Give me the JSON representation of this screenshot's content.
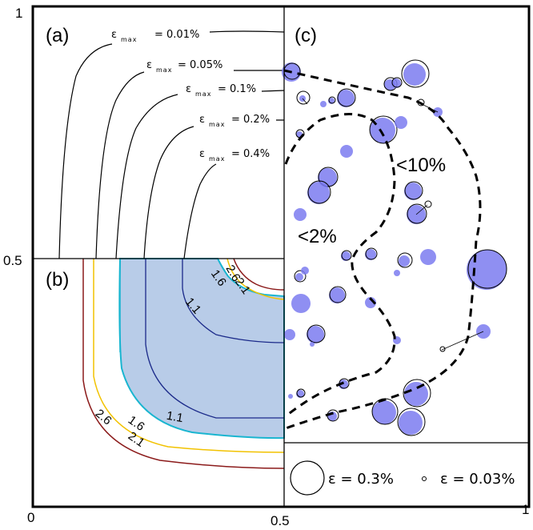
{
  "axes": {
    "y_top": "1",
    "y_mid": "0.5",
    "x_left": "0",
    "x_mid": "0.5",
    "x_right": "1"
  },
  "panel_a": {
    "label": "(a)",
    "contour_prefix": "ε",
    "contour_sub": "max",
    "contours": [
      "= 0.01%",
      "= 0.05%",
      "= 0.1%",
      "= 0.2%",
      "= 0.4%"
    ]
  },
  "panel_b": {
    "label": "(b)",
    "contour_labels": [
      "2.6",
      "2.1",
      "1.6",
      "1.1",
      "1.1",
      "1.6",
      "2.1",
      "2.6"
    ],
    "colors": {
      "fill": "#b8cce8",
      "c11": "#1b2a8a",
      "c16": "#19b5d0",
      "c21": "#f2c200",
      "c26": "#8b1a1a"
    }
  },
  "panel_c": {
    "label": "(c)",
    "region_labels": [
      "<10%",
      "<2%"
    ],
    "legend": [
      "ε = 0.3%",
      "ε = 0.03%"
    ],
    "colors": {
      "blue_circle": "#7b7bf0"
    }
  }
}
